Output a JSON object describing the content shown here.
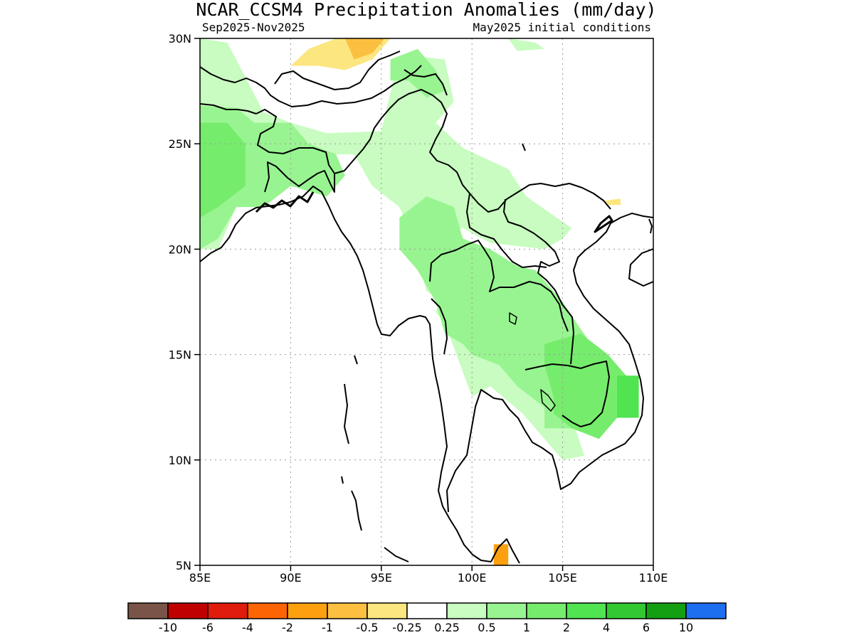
{
  "title": "NCAR_CCSM4 Precipitation Anomalies (mm/day)",
  "subtitle_left": "Sep2025-Nov2025",
  "subtitle_right": "May2025 initial conditions",
  "map": {
    "lon_range": [
      85,
      110
    ],
    "lat_range": [
      5,
      30
    ],
    "lon_ticks": [
      {
        "value": 85,
        "label": "85E"
      },
      {
        "value": 90,
        "label": "90E"
      },
      {
        "value": 95,
        "label": "95E"
      },
      {
        "value": 100,
        "label": "100E"
      },
      {
        "value": 105,
        "label": "105E"
      },
      {
        "value": 110,
        "label": "110E"
      }
    ],
    "lat_ticks": [
      {
        "value": 5,
        "label": "5N"
      },
      {
        "value": 10,
        "label": "10N"
      },
      {
        "value": 15,
        "label": "15N"
      },
      {
        "value": 20,
        "label": "20N"
      },
      {
        "value": 25,
        "label": "25N"
      },
      {
        "value": 30,
        "label": "30N"
      }
    ],
    "grid": true,
    "colors": {
      "pos_0_25": "#c8fcc0",
      "pos_0_5": "#98f490",
      "pos_1": "#76ec6c",
      "pos_2": "#50e450",
      "neg_0_25": "#fce680",
      "neg_0_5": "#fcc040",
      "neg_1": "#fca010"
    },
    "anomaly_regions": [
      {
        "level": "pos_0_25",
        "poly": [
          [
            85,
            30
          ],
          [
            86.5,
            29.8
          ],
          [
            87,
            29
          ],
          [
            88.5,
            26.5
          ],
          [
            90,
            26
          ],
          [
            92,
            25.5
          ],
          [
            95,
            25.6
          ],
          [
            95.8,
            28.5
          ],
          [
            96.5,
            29.2
          ],
          [
            98.5,
            29
          ],
          [
            99,
            27
          ],
          [
            98,
            26
          ],
          [
            99.5,
            24.8
          ],
          [
            102,
            23.8
          ],
          [
            103,
            22.5
          ],
          [
            105.5,
            21
          ],
          [
            105,
            20.5
          ],
          [
            104,
            20
          ],
          [
            101,
            20.3
          ],
          [
            99.5,
            21
          ],
          [
            98.5,
            20.8
          ],
          [
            98.5,
            18
          ],
          [
            98,
            17
          ],
          [
            98.5,
            16.5
          ],
          [
            100,
            13
          ],
          [
            101,
            13.5
          ],
          [
            102.8,
            12.2
          ],
          [
            105,
            10
          ],
          [
            106.2,
            10.2
          ],
          [
            105.5,
            12
          ],
          [
            104.5,
            14
          ],
          [
            103.5,
            15.5
          ],
          [
            101.5,
            15.2
          ],
          [
            100,
            16.5
          ],
          [
            98.5,
            17.5
          ],
          [
            97.5,
            18
          ],
          [
            97,
            19.5
          ],
          [
            96.5,
            21
          ],
          [
            96,
            22
          ],
          [
            94.5,
            23
          ],
          [
            93.5,
            24.5
          ],
          [
            92,
            24.5
          ],
          [
            91.5,
            23
          ],
          [
            90,
            23
          ],
          [
            88.5,
            22
          ],
          [
            87,
            22
          ],
          [
            86,
            20
          ],
          [
            85,
            20
          ]
        ]
      },
      {
        "level": "pos_0_25",
        "poly": [
          [
            102,
            30
          ],
          [
            103.5,
            29.8
          ],
          [
            104,
            29.5
          ],
          [
            102.5,
            29.4
          ]
        ]
      },
      {
        "level": "pos_0_5",
        "poly": [
          [
            85,
            26.8
          ],
          [
            87,
            26.7
          ],
          [
            88,
            26
          ],
          [
            90,
            26
          ],
          [
            91,
            25
          ],
          [
            92.5,
            24.5
          ],
          [
            93,
            23.5
          ],
          [
            92,
            22.5
          ],
          [
            90,
            23
          ],
          [
            88.5,
            22
          ],
          [
            87,
            22
          ],
          [
            86,
            20.5
          ],
          [
            85,
            20
          ]
        ]
      },
      {
        "level": "pos_0_5",
        "poly": [
          [
            95.5,
            29
          ],
          [
            97,
            29.5
          ],
          [
            98,
            28.5
          ],
          [
            98.5,
            27.5
          ],
          [
            97.5,
            27.2
          ],
          [
            96.5,
            28
          ],
          [
            95.5,
            28
          ]
        ]
      },
      {
        "level": "pos_0_5",
        "poly": [
          [
            96,
            21.5
          ],
          [
            97.5,
            22.5
          ],
          [
            99,
            22
          ],
          [
            99.5,
            20.5
          ],
          [
            101,
            20
          ],
          [
            102.5,
            19.2
          ],
          [
            103.5,
            19
          ],
          [
            104.5,
            18
          ],
          [
            105,
            17.5
          ],
          [
            106,
            16.2
          ],
          [
            107,
            15
          ],
          [
            107.5,
            13.5
          ],
          [
            106.5,
            12
          ],
          [
            105.5,
            11.5
          ],
          [
            104,
            11.5
          ],
          [
            104,
            12.5
          ],
          [
            102.5,
            13.5
          ],
          [
            101.5,
            14.5
          ],
          [
            100,
            15
          ],
          [
            99.5,
            15.5
          ],
          [
            98.5,
            16
          ],
          [
            98,
            17.5
          ],
          [
            97,
            19
          ],
          [
            96,
            20
          ]
        ]
      },
      {
        "level": "pos_1",
        "poly": [
          [
            85,
            26
          ],
          [
            86.5,
            26
          ],
          [
            87.5,
            25
          ],
          [
            87.5,
            23
          ],
          [
            86,
            22
          ],
          [
            85,
            21.5
          ]
        ]
      },
      {
        "level": "pos_1",
        "poly": [
          [
            104,
            15.5
          ],
          [
            106,
            16
          ],
          [
            107.5,
            15
          ],
          [
            108.5,
            14
          ],
          [
            108.5,
            12.5
          ],
          [
            107,
            11
          ],
          [
            105.5,
            11.5
          ],
          [
            104.5,
            12.2
          ],
          [
            104.5,
            13
          ],
          [
            104,
            14.5
          ]
        ]
      },
      {
        "level": "pos_2",
        "poly": [
          [
            108,
            14
          ],
          [
            109.2,
            14
          ],
          [
            109.2,
            12
          ],
          [
            108,
            12
          ]
        ]
      },
      {
        "level": "neg_0_25",
        "poly": [
          [
            90,
            28.7
          ],
          [
            91,
            29.5
          ],
          [
            92.5,
            30
          ],
          [
            95.5,
            30
          ],
          [
            94.5,
            29
          ],
          [
            93,
            28.5
          ],
          [
            91.5,
            28.7
          ]
        ]
      },
      {
        "level": "neg_0_25",
        "poly": [
          [
            107.3,
            22.3
          ],
          [
            108.2,
            22.4
          ],
          [
            108.2,
            22.1
          ],
          [
            107.5,
            22.1
          ]
        ]
      },
      {
        "level": "neg_0_5",
        "poly": [
          [
            93,
            30
          ],
          [
            95.2,
            30
          ],
          [
            94.5,
            29.3
          ],
          [
            93.5,
            29
          ]
        ]
      },
      {
        "level": "neg_1",
        "poly": [
          [
            101.2,
            6
          ],
          [
            102,
            6
          ],
          [
            102,
            5
          ],
          [
            101.2,
            5
          ]
        ]
      }
    ]
  },
  "colorbar": {
    "colors": [
      "#7a5448",
      "#c00000",
      "#e01c0c",
      "#fc6404",
      "#fca010",
      "#fcc040",
      "#fce680",
      "#ffffff",
      "#c8fcc0",
      "#98f490",
      "#76ec6c",
      "#50e450",
      "#32c832",
      "#12a012",
      "#1e6ef0"
    ],
    "labels": [
      "-10",
      "-6",
      "-4",
      "-2",
      "-1",
      "-0.5",
      "-0.25",
      "0.25",
      "0.5",
      "1",
      "2",
      "4",
      "6",
      "10"
    ]
  }
}
